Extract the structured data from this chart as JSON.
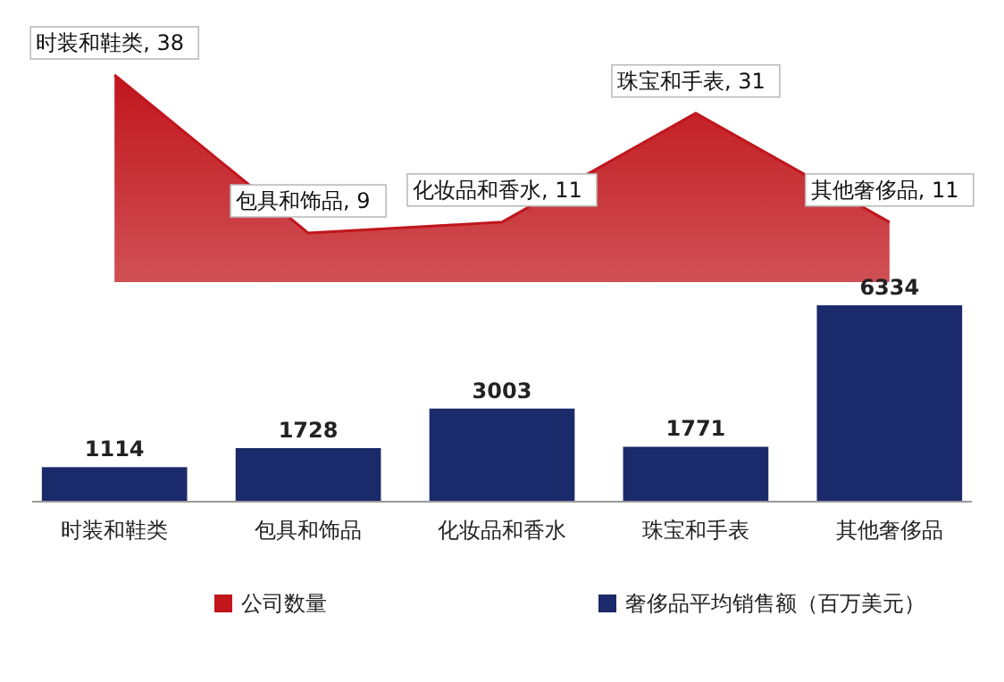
{
  "chart_data": [
    {
      "type": "area",
      "categories": [
        null,
        null,
        null,
        null,
        null
      ],
      "series": [
        {
          "name": "公司数量",
          "color": "#c0161c",
          "values": [
            38,
            9,
            11,
            31,
            11
          ],
          "value_labels": [
            "时装和鞋类, 38",
            "包具和饰品, 9",
            "化妆品和香水, 11",
            "珠宝和手表, 31",
            "其他奢侈品, 11"
          ]
        }
      ],
      "tick_labels": false,
      "legend": "bottom"
    },
    {
      "type": "bar",
      "categories": [
        "时装和鞋类",
        "包具和饰品",
        "化妆品和香水",
        "珠宝和手表",
        "其他奢侈品"
      ],
      "series": [
        {
          "name": "奢侈品平均销售额（百万美元）",
          "color": "#1b2a6b",
          "values": [
            1114,
            1728,
            3003,
            1771,
            6334
          ]
        }
      ],
      "data_labels": true,
      "tick_labels": "x",
      "legend": "bottom"
    }
  ]
}
